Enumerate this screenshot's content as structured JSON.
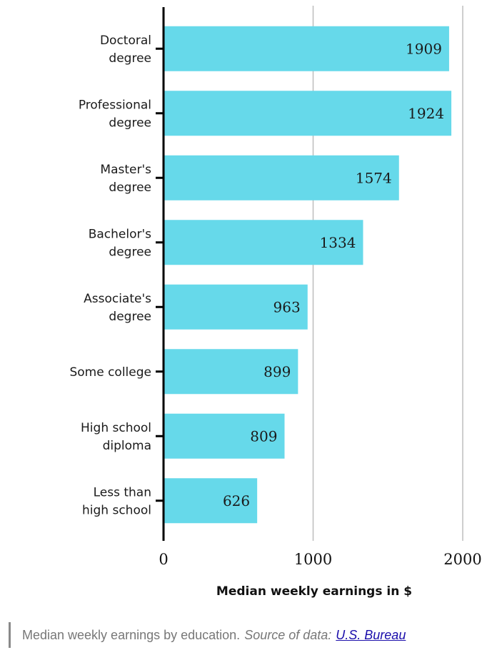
{
  "chart_data": {
    "type": "bar",
    "orientation": "horizontal",
    "categories": [
      [
        "Doctoral",
        "degree"
      ],
      [
        "Professional",
        "degree"
      ],
      [
        "Master's",
        "degree"
      ],
      [
        "Bachelor's",
        "degree"
      ],
      [
        "Associate's",
        "degree"
      ],
      [
        "Some college"
      ],
      [
        "High school",
        "diploma"
      ],
      [
        "Less than",
        "high school"
      ]
    ],
    "values": [
      1909,
      1924,
      1574,
      1334,
      963,
      899,
      809,
      626
    ],
    "xlabel": "Median weekly earnings in $",
    "ylabel": "",
    "xlim": [
      0,
      2000
    ],
    "xticks": [
      0,
      1000,
      2000
    ],
    "grid": "vertical at x ticks",
    "bar_color": "#66d9ea",
    "grid_color": "#bdbdbd",
    "axis_color": "#000000"
  },
  "caption": {
    "text": "Median weekly earnings by education.",
    "source_prefix": "Source of data:",
    "source_link": "U.S. Bureau"
  }
}
